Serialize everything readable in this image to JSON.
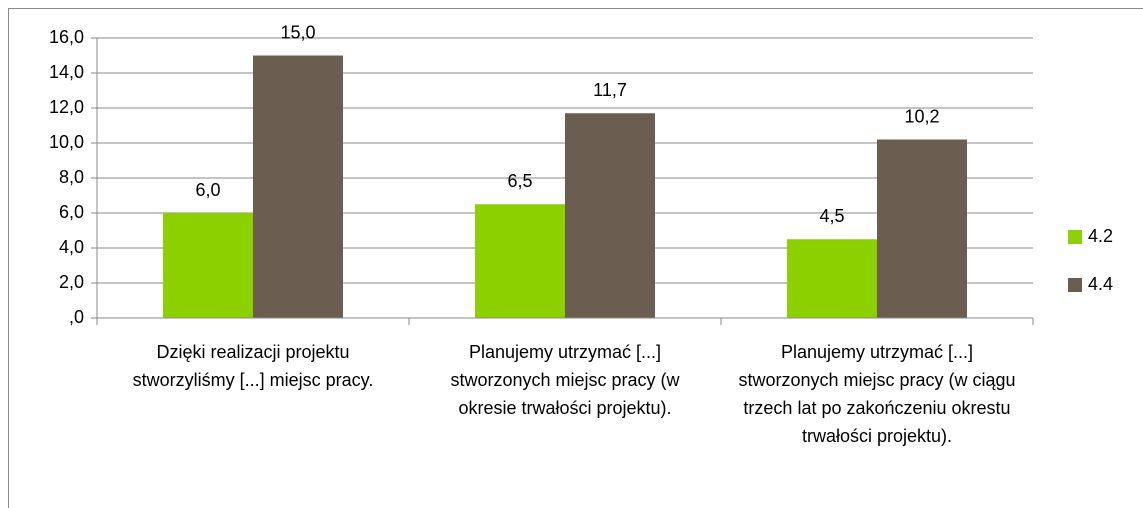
{
  "chart_data": {
    "type": "bar",
    "categories": [
      "Dzięki realizacji projektu stworzyliśmy [...] miejsc pracy.",
      "Planujemy utrzymać [...] stworzonych miejsc pracy (w okresie trwałości projektu).",
      "Planujemy utrzymać  [...] stworzonych miejsc pracy (w ciągu trzech lat po zakończeniu okrestu trwałości projektu)."
    ],
    "series": [
      {
        "name": "4.2",
        "color": "#8cd000",
        "values": [
          6.0,
          6.5,
          4.5
        ],
        "value_labels": [
          "6,0",
          "6,5",
          "4,5"
        ]
      },
      {
        "name": "4.4",
        "color": "#6b5e50",
        "values": [
          15.0,
          11.7,
          10.2
        ],
        "value_labels": [
          "15,0",
          "11,7",
          "10,2"
        ]
      }
    ],
    "ylim": [
      0,
      16
    ],
    "yticks": [
      {
        "value": 0,
        "label": ",0"
      },
      {
        "value": 2,
        "label": "2,0"
      },
      {
        "value": 4,
        "label": "4,0"
      },
      {
        "value": 6,
        "label": "6,0"
      },
      {
        "value": 8,
        "label": "8,0"
      },
      {
        "value": 10,
        "label": "10,0"
      },
      {
        "value": 12,
        "label": "12,0"
      },
      {
        "value": 14,
        "label": "14,0"
      },
      {
        "value": 16,
        "label": "16,0"
      }
    ],
    "grid": true,
    "legend": "right"
  }
}
